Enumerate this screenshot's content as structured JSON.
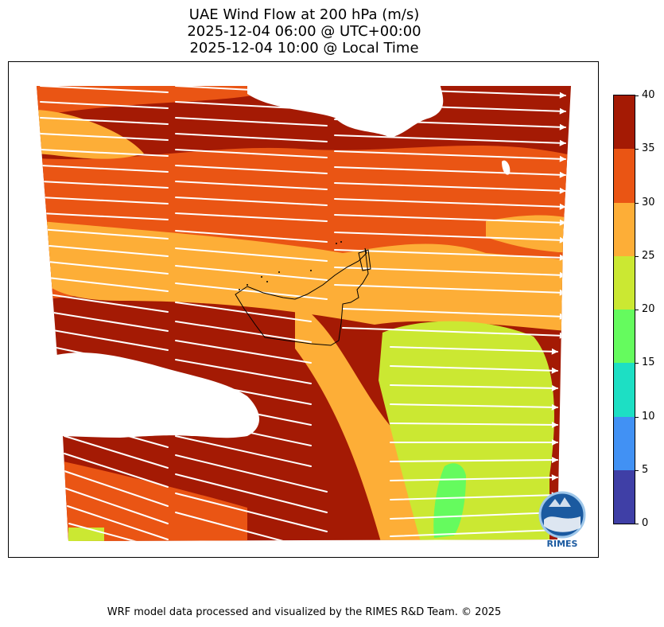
{
  "title": {
    "line1": "UAE Wind Flow at 200 hPa (m/s)",
    "line2": "2025-12-04 06:00 @ UTC+00:00",
    "line3": "2025-12-04 10:00 @ Local Time"
  },
  "colorbar": {
    "ticks": [
      "0",
      "5",
      "10",
      "15",
      "20",
      "25",
      "30",
      "35",
      "40"
    ],
    "colors": [
      "#3f3fa6",
      "#4191f4",
      "#1ddfc4",
      "#65fb5e",
      "#cbe832",
      "#fdae37",
      "#ea5514",
      "#a41a04"
    ]
  },
  "logo": {
    "text": "RIMES"
  },
  "footer": "WRF model data processed and visualized by the RIMES R&D Team. © 2025"
}
